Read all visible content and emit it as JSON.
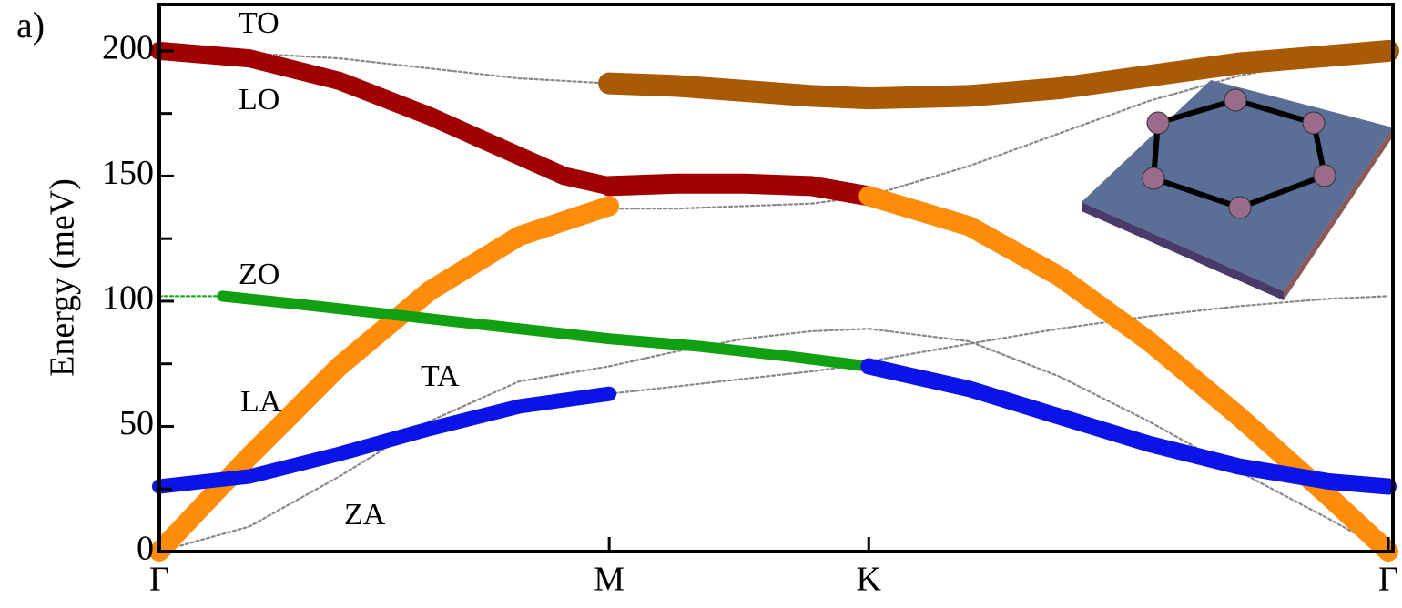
{
  "chart_data": {
    "type": "line",
    "panel_label": "a)",
    "ylabel": "Energy (meV)",
    "xlim": [
      0,
      2.732
    ],
    "ylim": [
      0,
      218.5
    ],
    "xticks": [
      {
        "value": 0,
        "label": "Γ"
      },
      {
        "value": 1,
        "label": "M"
      },
      {
        "value": 1.577,
        "label": "K"
      },
      {
        "value": 2.732,
        "label": "Γ"
      }
    ],
    "yticks": [
      0,
      50,
      100,
      150,
      200
    ],
    "yminor": [
      25,
      75,
      125,
      175
    ],
    "annotations": [
      "TO",
      "LO",
      "ZO",
      "LA",
      "TA",
      "ZA"
    ],
    "series": [
      {
        "style": "dotted",
        "color": "#888888",
        "x": [
          0,
          0.2,
          0.4,
          0.6,
          0.8,
          1
        ],
        "values": [
          0,
          10,
          30,
          52,
          68,
          74
        ]
      },
      {
        "style": "dotted",
        "color": "#888888",
        "x": [
          1,
          1.15,
          1.3,
          1.45,
          1.577
        ],
        "values": [
          74,
          80,
          85,
          88,
          89
        ]
      },
      {
        "style": "dotted",
        "color": "#888888",
        "x": [
          1.577,
          1.8,
          2.0,
          2.2,
          2.4,
          2.6,
          2.732
        ],
        "values": [
          89,
          84,
          70,
          52,
          32,
          13,
          0
        ]
      },
      {
        "style": "dotted",
        "color": "#888888",
        "x": [
          1,
          1.15,
          1.3,
          1.45,
          1.577
        ],
        "values": [
          63,
          66,
          69,
          72,
          75
        ]
      },
      {
        "style": "dotted",
        "color": "#888888",
        "x": [
          1.577,
          1.8,
          2.0,
          2.2,
          2.4,
          2.6,
          2.732
        ],
        "values": [
          76,
          83,
          89,
          94,
          98,
          101,
          102
        ]
      },
      {
        "style": "dotted",
        "color": "#888888",
        "x": [
          0,
          0.2,
          0.4,
          0.6,
          0.8,
          1
        ],
        "values": [
          200,
          199,
          197,
          193,
          189,
          187
        ]
      },
      {
        "style": "dotted",
        "color": "#888888",
        "x": [
          1,
          1.15,
          1.3,
          1.45,
          1.577
        ],
        "values": [
          137,
          137,
          138,
          139,
          142
        ]
      },
      {
        "style": "dotted",
        "color": "#888888",
        "x": [
          1.577,
          1.8,
          2.0,
          2.2,
          2.4,
          2.6,
          2.732
        ],
        "values": [
          142,
          154,
          167,
          180,
          190,
          197,
          200
        ]
      },
      {
        "style": "dotted",
        "color": "#22aa22",
        "x": [
          0,
          0.14
        ],
        "values": [
          102,
          102
        ]
      },
      {
        "style": "solid",
        "color": "#a85a04",
        "line_width": 24,
        "x": [
          1,
          1.15,
          1.3,
          1.45,
          1.577,
          1.8,
          2.0,
          2.2,
          2.4,
          2.6,
          2.732
        ],
        "values": [
          187,
          186,
          184,
          182,
          181,
          182,
          185,
          190,
          195,
          198,
          200
        ]
      },
      {
        "style": "solid",
        "color": "#a00000",
        "line_width": 20,
        "x": [
          0,
          0.2,
          0.4,
          0.6,
          0.8,
          0.9,
          1
        ],
        "values": [
          200,
          197,
          188,
          174,
          158,
          150,
          146
        ]
      },
      {
        "style": "solid",
        "color": "#a00000",
        "line_width": 22,
        "x": [
          1,
          1.15,
          1.3,
          1.45,
          1.577
        ],
        "values": [
          146,
          147,
          147,
          146,
          142
        ]
      },
      {
        "style": "solid",
        "color": "#ff8c0a",
        "line_width": 22,
        "x": [
          0,
          0.2,
          0.4,
          0.6,
          0.8,
          1
        ],
        "values": [
          0,
          38,
          74,
          104,
          126,
          138
        ]
      },
      {
        "style": "solid",
        "color": "#ff8c0a",
        "line_width": 22,
        "x": [
          1.577,
          1.8,
          2.0,
          2.2,
          2.4,
          2.6,
          2.732
        ],
        "values": [
          142,
          130,
          110,
          84,
          54,
          22,
          0
        ]
      },
      {
        "style": "solid",
        "color": "#11a011",
        "line_width": 12,
        "x": [
          0.14,
          0.3,
          0.5,
          0.7,
          0.9,
          1.0,
          1.2,
          1.4,
          1.577
        ],
        "values": [
          102,
          99,
          95,
          91,
          87,
          85,
          82,
          78,
          74
        ]
      },
      {
        "style": "solid",
        "color": "#0a14e6",
        "line_width": 16,
        "x": [
          0,
          0.2,
          0.4,
          0.6,
          0.8,
          1
        ],
        "values": [
          26,
          30,
          39,
          49,
          58,
          63
        ]
      },
      {
        "style": "solid",
        "color": "#0a14e6",
        "line_width": 18,
        "x": [
          1.577,
          1.8,
          2.0,
          2.2,
          2.4,
          2.6,
          2.732
        ],
        "values": [
          74,
          65,
          54,
          43,
          34,
          28,
          26
        ]
      }
    ]
  }
}
